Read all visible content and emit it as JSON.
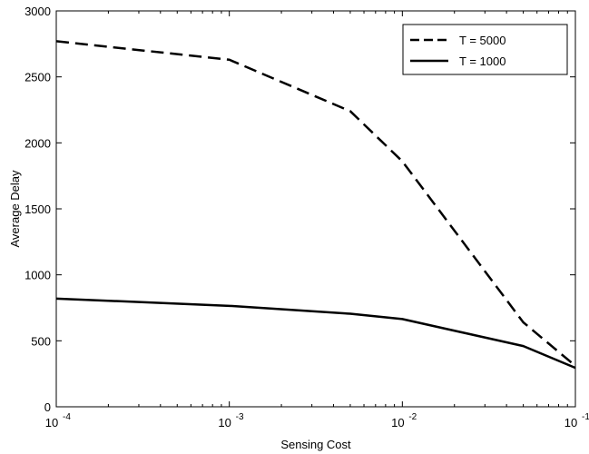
{
  "chart_data": {
    "type": "line",
    "title": "",
    "xlabel": "Sensing Cost",
    "ylabel": "Average Delay",
    "xscale": "log",
    "xlim": [
      0.0001,
      0.1
    ],
    "ylim": [
      0,
      3000
    ],
    "grid": false,
    "legend_position": "top-right",
    "x_ticks": [
      {
        "value": 0.0001,
        "base": "10",
        "exp": "-4"
      },
      {
        "value": 0.001,
        "base": "10",
        "exp": "-3"
      },
      {
        "value": 0.01,
        "base": "10",
        "exp": "-2"
      },
      {
        "value": 0.1,
        "base": "10",
        "exp": "-1"
      }
    ],
    "y_ticks": [
      "0",
      "500",
      "1000",
      "1500",
      "2000",
      "2500",
      "3000"
    ],
    "series": [
      {
        "name": "T = 5000",
        "style": "dashed",
        "color": "#000000",
        "points": [
          {
            "x": 0.0001,
            "y": 2770
          },
          {
            "x": 0.001,
            "y": 2630
          },
          {
            "x": 0.005,
            "y": 2240
          },
          {
            "x": 0.01,
            "y": 1860
          },
          {
            "x": 0.05,
            "y": 640
          },
          {
            "x": 0.1,
            "y": 310
          }
        ]
      },
      {
        "name": "T = 1000",
        "style": "solid",
        "color": "#000000",
        "points": [
          {
            "x": 0.0001,
            "y": 820
          },
          {
            "x": 0.001,
            "y": 765
          },
          {
            "x": 0.005,
            "y": 705
          },
          {
            "x": 0.01,
            "y": 665
          },
          {
            "x": 0.05,
            "y": 460
          },
          {
            "x": 0.1,
            "y": 295
          }
        ]
      }
    ]
  }
}
